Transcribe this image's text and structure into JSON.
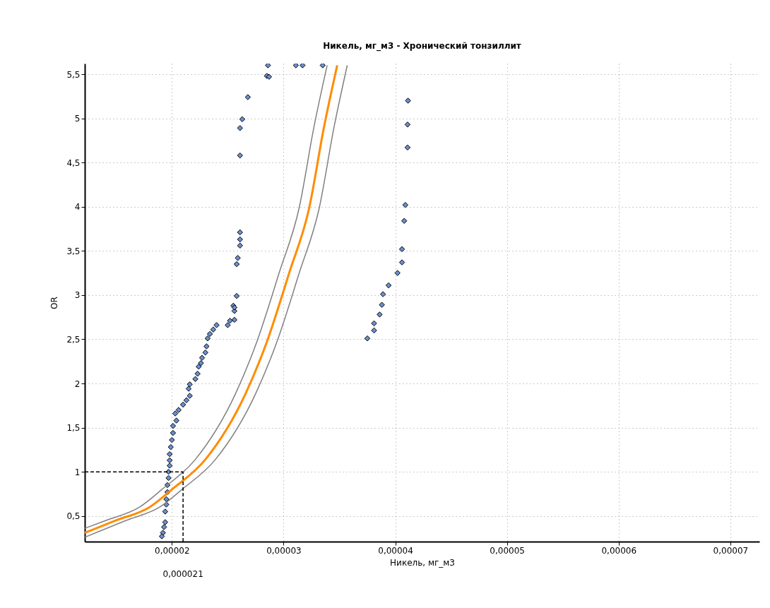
{
  "chart_data": {
    "type": "scatter",
    "title": "Никель, мг_м3 - Хронический тонзиллит",
    "xlabel": "Никель, мг_м3",
    "ylabel": "OR",
    "xlim": [
      1.22e-05,
      7.26e-05
    ],
    "ylim": [
      0.21,
      5.62
    ],
    "xticks": [
      {
        "value": 2e-05,
        "label": "0,00002"
      },
      {
        "value": 3e-05,
        "label": "0,00003"
      },
      {
        "value": 4e-05,
        "label": "0,00004"
      },
      {
        "value": 5e-05,
        "label": "0,00005"
      },
      {
        "value": 6e-05,
        "label": "0,00006"
      },
      {
        "value": 7e-05,
        "label": "0,00007"
      }
    ],
    "yticks": [
      {
        "value": 0.5,
        "label": "0,5"
      },
      1,
      {
        "value": 1.5,
        "label": "1,5"
      },
      2,
      {
        "value": 2.5,
        "label": "2,5"
      },
      3,
      {
        "value": 3.5,
        "label": "3,5"
      },
      4,
      {
        "value": 4.5,
        "label": "4,5"
      },
      5,
      {
        "value": 5.5,
        "label": "5,5"
      }
    ],
    "grid": true,
    "series": [
      {
        "type": "scatter",
        "marker": "diamond",
        "color": "#6b8fd0",
        "x": [
          4.114e-05,
          4.11e-05,
          4.11e-05,
          4.09e-05,
          4.08e-05,
          4.06e-05,
          4.06e-05,
          4.02e-05,
          3.94e-05,
          3.89e-05,
          3.88e-05,
          3.86e-05,
          3.81e-05,
          3.81e-05,
          3.75e-05,
          2.86e-05,
          3.11e-05,
          3.17e-05,
          3.35e-05,
          2.85e-05,
          2.87e-05,
          2.68e-05,
          2.63e-05,
          2.61e-05,
          2.61e-05,
          2.61e-05,
          2.61e-05,
          2.61e-05,
          2.59e-05,
          2.58e-05,
          2.58e-05,
          2.55e-05,
          2.56e-05,
          2.56e-05,
          2.56e-05,
          2.52e-05,
          2.5e-05,
          2.4e-05,
          2.37e-05,
          2.34e-05,
          2.32e-05,
          2.31e-05,
          2.3e-05,
          2.27e-05,
          2.26e-05,
          2.24e-05,
          2.23e-05,
          2.21e-05,
          2.16e-05,
          2.15e-05,
          2.16e-05,
          2.13e-05,
          2.1e-05,
          2.06e-05,
          2.03e-05,
          2.04e-05,
          2.01e-05,
          2.01e-05,
          2e-05,
          1.99e-05,
          1.98e-05,
          1.98e-05,
          1.98e-05,
          1.97e-05,
          1.97e-05,
          1.96e-05,
          1.96e-05,
          1.95e-05,
          1.95e-05,
          1.94e-05,
          1.94e-05,
          1.93e-05,
          1.92e-05,
          1.91e-05
        ],
        "values": [
          5.2,
          4.93,
          4.67,
          4.02,
          3.84,
          3.52,
          3.37,
          3.25,
          3.11,
          3.01,
          2.89,
          2.78,
          2.68,
          2.6,
          2.51,
          5.6,
          5.6,
          5.6,
          5.6,
          5.48,
          5.47,
          5.24,
          4.99,
          4.89,
          4.58,
          3.71,
          3.63,
          3.56,
          3.42,
          3.35,
          2.99,
          2.88,
          2.82,
          2.72,
          2.86,
          2.71,
          2.66,
          2.66,
          2.61,
          2.56,
          2.51,
          2.42,
          2.35,
          2.29,
          2.23,
          2.19,
          2.11,
          2.05,
          1.99,
          1.94,
          1.86,
          1.81,
          1.76,
          1.7,
          1.66,
          1.58,
          1.52,
          1.44,
          1.36,
          1.28,
          1.2,
          1.13,
          1.07,
          1.0,
          0.93,
          0.85,
          0.77,
          0.69,
          0.63,
          0.55,
          0.43,
          0.375,
          0.31,
          0.27
        ]
      },
      {
        "type": "line",
        "marker": "none",
        "color": "#ff8c00",
        "x": [
          1.22e-05,
          1.5e-05,
          1.8e-05,
          2e-05,
          2.3e-05,
          2.66e-05,
          2.85e-05,
          3.05e-05,
          3.23e-05,
          3.36e-05,
          3.48e-05
        ],
        "values": [
          0.31,
          0.45,
          0.6,
          0.8,
          1.14,
          1.885,
          2.47,
          3.25,
          3.99,
          4.89,
          5.6
        ]
      },
      {
        "type": "line",
        "marker": "none",
        "color": "#808080",
        "x": [
          1.22e-05,
          1.41e-05,
          1.71e-05,
          1.91e-05,
          2.21e-05,
          2.57e-05,
          2.76e-05,
          2.96e-05,
          3.14e-05,
          3.27e-05,
          3.39e-05
        ],
        "values": [
          0.36,
          0.45,
          0.6,
          0.8,
          1.14,
          1.885,
          2.47,
          3.25,
          3.99,
          4.89,
          5.6
        ]
      },
      {
        "type": "line",
        "marker": "none",
        "color": "#808080",
        "x": [
          1.22e-05,
          1.59e-05,
          1.89e-05,
          2.09e-05,
          2.39e-05,
          2.75e-05,
          2.94e-05,
          3.14e-05,
          3.32e-05,
          3.45e-05,
          3.57e-05
        ],
        "values": [
          0.26,
          0.45,
          0.6,
          0.8,
          1.14,
          1.885,
          2.47,
          3.25,
          3.99,
          4.89,
          5.6
        ]
      }
    ],
    "ref_lines": [
      {
        "axis": "x",
        "value": 2.1e-05,
        "label": "0,000021",
        "color": "#000000",
        "line_style": "dashed"
      },
      {
        "axis": "y",
        "value": 1,
        "label": null,
        "color": "#000000",
        "line_style": "dashed"
      }
    ]
  }
}
